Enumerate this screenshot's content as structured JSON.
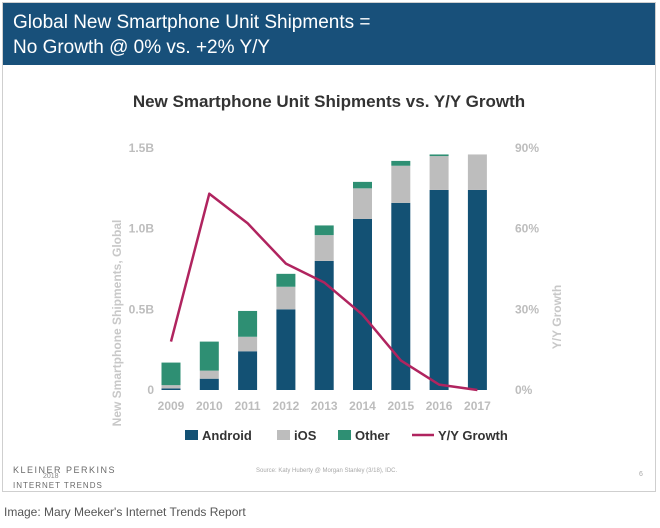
{
  "header": {
    "line1": "Global New Smartphone Unit Shipments =",
    "line2": "No Growth @ 0% vs. +2% Y/Y"
  },
  "footer": {
    "brand": "KLEINER PERKINS",
    "year": "2018",
    "brand2": "INTERNET TRENDS",
    "source": "Source: Katy Huberty @ Morgan Stanley (3/18), IDC.",
    "page": "6"
  },
  "caption": "Image: Mary Meeker's Internet Trends Report",
  "colors": {
    "android": "#135174",
    "ios": "#bdbdbd",
    "other": "#2e8f73",
    "growth": "#b0245f",
    "axis_text": "#bdbdbd"
  },
  "chart_data": {
    "type": "bar",
    "stacked": true,
    "title": "New Smartphone Unit Shipments vs. Y/Y Growth",
    "xlabel": "",
    "ylabel": "New Smartphone Shipments, Global",
    "ylabel_right": "Y/Y Growth",
    "categories": [
      "2009",
      "2010",
      "2011",
      "2012",
      "2013",
      "2014",
      "2015",
      "2016",
      "2017"
    ],
    "ylim": [
      0,
      1.5
    ],
    "yticks": [
      0,
      0.5,
      1.0,
      1.5
    ],
    "ytick_labels": [
      "0",
      "0.5B",
      "1.0B",
      "1.5B"
    ],
    "ylim_right": [
      0,
      90
    ],
    "yticks_right": [
      0,
      30,
      60,
      90
    ],
    "ytick_labels_right": [
      "0%",
      "30%",
      "60%",
      "90%"
    ],
    "series": [
      {
        "name": "Android",
        "values": [
          0.01,
          0.07,
          0.24,
          0.5,
          0.8,
          1.06,
          1.16,
          1.24,
          1.24
        ]
      },
      {
        "name": "iOS",
        "values": [
          0.02,
          0.05,
          0.09,
          0.14,
          0.16,
          0.19,
          0.23,
          0.21,
          0.22
        ]
      },
      {
        "name": "Other",
        "values": [
          0.14,
          0.18,
          0.16,
          0.08,
          0.06,
          0.04,
          0.03,
          0.01,
          0.0
        ]
      }
    ],
    "line_series": {
      "name": "Y/Y Growth",
      "axis": "right",
      "values": [
        18,
        73,
        62,
        47,
        40,
        28,
        11,
        2,
        0
      ]
    },
    "legend": [
      "Android",
      "iOS",
      "Other",
      "Y/Y Growth"
    ],
    "legend_position": "bottom",
    "grid": false
  }
}
